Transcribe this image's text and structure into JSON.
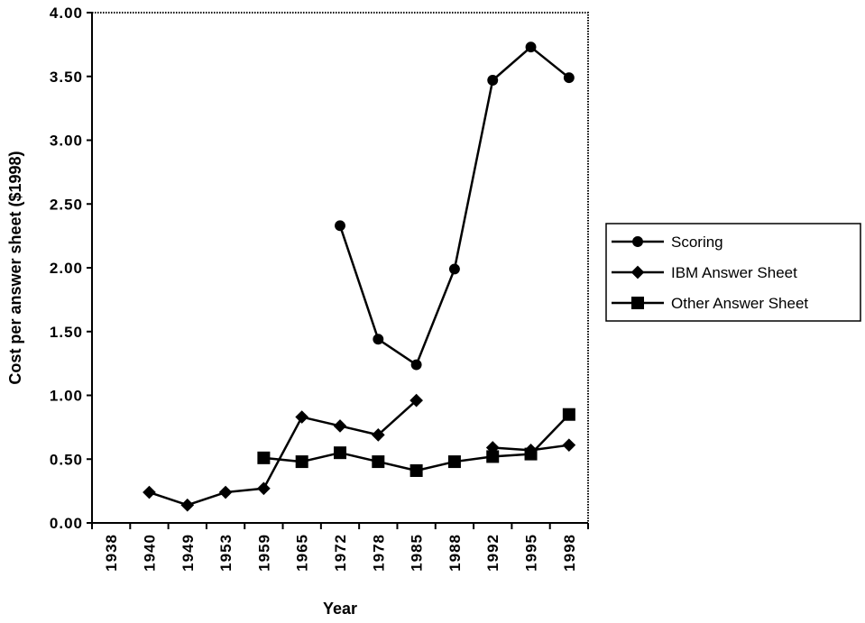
{
  "chart_data": {
    "type": "line",
    "title": "",
    "xlabel": "Year",
    "ylabel": "Cost per answer sheet ($1998)",
    "categories": [
      "1938",
      "1940",
      "1949",
      "1953",
      "1959",
      "1965",
      "1972",
      "1978",
      "1985",
      "1988",
      "1992",
      "1995",
      "1998"
    ],
    "ylim": [
      0,
      4.0
    ],
    "yticks": [
      "0.00",
      "0.50",
      "1.00",
      "1.50",
      "2.00",
      "2.50",
      "3.00",
      "3.50",
      "4.00"
    ],
    "ytick_values": [
      0,
      0.5,
      1.0,
      1.5,
      2.0,
      2.5,
      3.0,
      3.5,
      4.0
    ],
    "legend_position": "right",
    "series": [
      {
        "name": "Scoring",
        "marker": "circle",
        "values": [
          null,
          null,
          null,
          null,
          null,
          null,
          2.33,
          1.44,
          1.24,
          1.99,
          3.47,
          3.73,
          3.49
        ]
      },
      {
        "name": "IBM Answer Sheet",
        "marker": "diamond",
        "values": [
          null,
          0.24,
          0.14,
          0.24,
          0.27,
          0.83,
          0.76,
          0.69,
          0.96,
          null,
          0.59,
          0.57,
          0.61
        ]
      },
      {
        "name": "Other Answer Sheet",
        "marker": "square",
        "values": [
          null,
          null,
          null,
          null,
          0.51,
          0.48,
          0.55,
          0.48,
          0.41,
          0.48,
          0.52,
          0.54,
          0.85
        ]
      }
    ],
    "gaps": {
      "IBM Answer Sheet": [
        [
          8,
          10
        ]
      ]
    },
    "grid": false,
    "colors": {
      "line": "#000000",
      "background": "#ffffff"
    }
  }
}
